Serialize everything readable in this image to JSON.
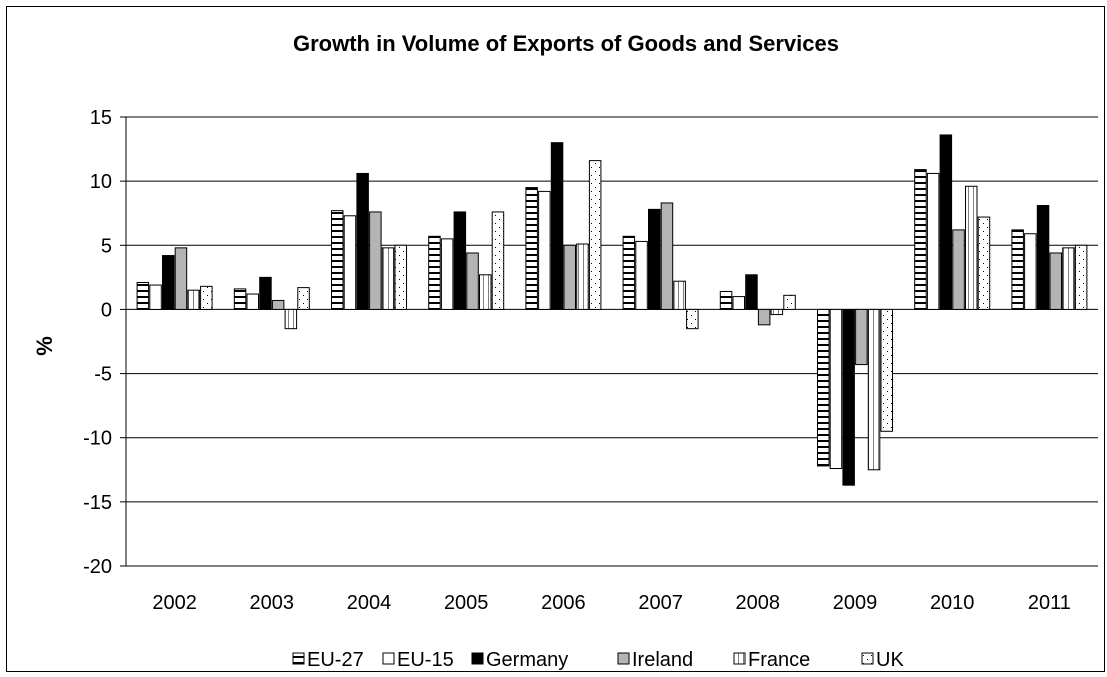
{
  "chart_data": {
    "type": "bar",
    "title": "Growth in Volume of Exports of Goods and Services",
    "xlabel": "",
    "ylabel": "%",
    "ylim": [
      -20,
      15
    ],
    "yticks": [
      15,
      10,
      5,
      0,
      -5,
      -10,
      -15,
      -20
    ],
    "grid": true,
    "legend_position": "bottom",
    "categories": [
      "2002",
      "2003",
      "2004",
      "2005",
      "2006",
      "2007",
      "2008",
      "2009",
      "2010",
      "2011"
    ],
    "series": [
      {
        "name": "EU-27",
        "pattern": "horizontal-stripes",
        "values": [
          2.1,
          1.6,
          7.7,
          5.7,
          9.5,
          5.7,
          1.4,
          -12.2,
          10.9,
          6.2
        ]
      },
      {
        "name": "EU-15",
        "pattern": "white",
        "values": [
          1.9,
          1.2,
          7.3,
          5.5,
          9.2,
          5.3,
          1.0,
          -12.4,
          10.6,
          5.9
        ]
      },
      {
        "name": "Germany",
        "pattern": "black",
        "values": [
          4.2,
          2.5,
          10.6,
          7.6,
          13.0,
          7.8,
          2.7,
          -13.7,
          13.6,
          8.1
        ]
      },
      {
        "name": "Ireland",
        "pattern": "gray",
        "values": [
          4.8,
          0.7,
          7.6,
          4.4,
          5.0,
          8.3,
          -1.2,
          -4.3,
          6.2,
          4.4
        ]
      },
      {
        "name": "France",
        "pattern": "vertical-stripes",
        "values": [
          1.5,
          -1.5,
          4.8,
          2.7,
          5.1,
          2.2,
          -0.4,
          -12.5,
          9.6,
          4.8
        ]
      },
      {
        "name": "UK",
        "pattern": "dots",
        "values": [
          1.8,
          1.7,
          5.0,
          7.6,
          11.6,
          -1.5,
          1.1,
          -9.5,
          7.2,
          5.0
        ]
      }
    ],
    "colors": {
      "black": "#000000",
      "gray": "#b4b4b4",
      "grid": "#000000",
      "background": "#ffffff"
    }
  }
}
